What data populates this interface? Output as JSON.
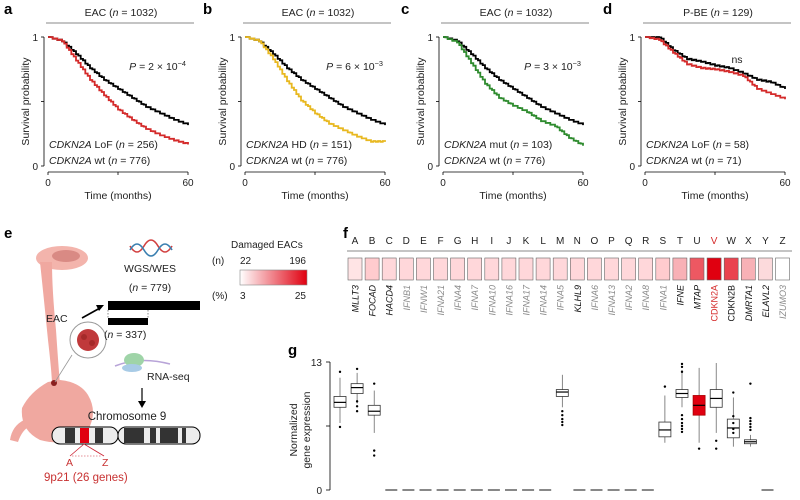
{
  "panel_letters": {
    "a": "a",
    "b": "b",
    "c": "c",
    "d": "d",
    "e": "e",
    "f": "f",
    "g": "g"
  },
  "chart_data": [
    {
      "type": "line",
      "panel": "a",
      "title": [
        {
          "t": "EAC ("
        },
        {
          "t": "n",
          "i": 1
        },
        {
          "t": " = 1032)"
        }
      ],
      "ylabel": "Survival probability",
      "xlabel": "Time (months)",
      "xlim": [
        0,
        60
      ],
      "ylim": [
        0,
        1
      ],
      "xticks": [
        "0",
        "60"
      ],
      "yticks": [
        "0",
        "1"
      ],
      "pvalue": [
        {
          "t": "P",
          "i": 1
        },
        {
          "t": " = 2 × 10"
        },
        {
          "t": "−4",
          "sup": 1
        }
      ],
      "legend_placement": "bottom-left",
      "series": [
        {
          "legend": [
            {
              "t": "CDKN2A",
              "i": 1
            },
            {
              "t": " LoF ("
            },
            {
              "t": "n",
              "i": 1
            },
            {
              "t": " = 256)"
            }
          ],
          "color": "#d42a2a",
          "x": [
            0,
            6,
            12,
            18,
            24,
            30,
            36,
            42,
            48,
            54,
            60
          ],
          "y": [
            1,
            0.97,
            0.82,
            0.67,
            0.55,
            0.44,
            0.36,
            0.29,
            0.24,
            0.2,
            0.17
          ]
        },
        {
          "legend": [
            {
              "t": "CDKN2A",
              "i": 1
            },
            {
              "t": " wt ("
            },
            {
              "t": "n",
              "i": 1
            },
            {
              "t": " = 776)"
            }
          ],
          "color": "#000000",
          "x": [
            0,
            6,
            12,
            18,
            24,
            30,
            36,
            42,
            48,
            54,
            60
          ],
          "y": [
            1,
            0.97,
            0.87,
            0.76,
            0.67,
            0.6,
            0.53,
            0.46,
            0.41,
            0.36,
            0.32
          ]
        }
      ]
    },
    {
      "type": "line",
      "panel": "b",
      "title": [
        {
          "t": "EAC ("
        },
        {
          "t": "n",
          "i": 1
        },
        {
          "t": " = 1032)"
        }
      ],
      "ylabel": "Survival probability",
      "xlabel": "Time (months)",
      "xlim": [
        0,
        60
      ],
      "ylim": [
        0,
        1
      ],
      "xticks": [
        "0",
        "60"
      ],
      "yticks": [
        "0",
        "1"
      ],
      "pvalue": [
        {
          "t": "P",
          "i": 1
        },
        {
          "t": " = 6 × 10"
        },
        {
          "t": "−3",
          "sup": 1
        }
      ],
      "legend_placement": "bottom-left",
      "series": [
        {
          "legend": [
            {
              "t": "CDKN2A",
              "i": 1
            },
            {
              "t": " HD ("
            },
            {
              "t": "n",
              "i": 1
            },
            {
              "t": " = 151)"
            }
          ],
          "color": "#e8b820",
          "x": [
            0,
            6,
            12,
            18,
            24,
            30,
            36,
            42,
            48,
            54,
            60
          ],
          "y": [
            1,
            0.97,
            0.83,
            0.66,
            0.51,
            0.41,
            0.33,
            0.28,
            0.23,
            0.19,
            0.19
          ]
        },
        {
          "legend": [
            {
              "t": "CDKN2A",
              "i": 1
            },
            {
              "t": " wt  ("
            },
            {
              "t": "n",
              "i": 1
            },
            {
              "t": " = 776)"
            }
          ],
          "color": "#000000",
          "x": [
            0,
            6,
            12,
            18,
            24,
            30,
            36,
            42,
            48,
            54,
            60
          ],
          "y": [
            1,
            0.97,
            0.87,
            0.76,
            0.67,
            0.6,
            0.53,
            0.46,
            0.41,
            0.36,
            0.32
          ]
        }
      ]
    },
    {
      "type": "line",
      "panel": "c",
      "title": [
        {
          "t": "EAC ("
        },
        {
          "t": "n",
          "i": 1
        },
        {
          "t": " = 1032)"
        }
      ],
      "ylabel": "Survival probability",
      "xlabel": "Time (months)",
      "xlim": [
        0,
        60
      ],
      "ylim": [
        0,
        1
      ],
      "xticks": [
        "0",
        "60"
      ],
      "yticks": [
        "0",
        "1"
      ],
      "pvalue": [
        {
          "t": "P",
          "i": 1
        },
        {
          "t": " = 3 × 10"
        },
        {
          "t": "−3",
          "sup": 1
        }
      ],
      "legend_placement": "bottom-left",
      "series": [
        {
          "legend": [
            {
              "t": "CDKN2A",
              "i": 1
            },
            {
              "t": " mut ("
            },
            {
              "t": "n",
              "i": 1
            },
            {
              "t": " = 103)"
            }
          ],
          "color": "#2e8b2e",
          "x": [
            0,
            6,
            12,
            18,
            24,
            30,
            36,
            42,
            48,
            54,
            60
          ],
          "y": [
            1,
            0.96,
            0.8,
            0.64,
            0.53,
            0.47,
            0.42,
            0.35,
            0.31,
            0.22,
            0.16
          ]
        },
        {
          "legend": [
            {
              "t": "CDKN2A",
              "i": 1
            },
            {
              "t": " wt  ("
            },
            {
              "t": "n",
              "i": 1
            },
            {
              "t": " = 776)"
            }
          ],
          "color": "#000000",
          "x": [
            0,
            6,
            12,
            18,
            24,
            30,
            36,
            42,
            48,
            54,
            60
          ],
          "y": [
            1,
            0.97,
            0.87,
            0.76,
            0.67,
            0.6,
            0.53,
            0.46,
            0.41,
            0.36,
            0.32
          ]
        }
      ]
    },
    {
      "type": "line",
      "panel": "d",
      "title": [
        {
          "t": "P-BE ("
        },
        {
          "t": "n",
          "i": 1
        },
        {
          "t": " = 129)"
        }
      ],
      "ylabel": "Survival probability",
      "xlabel": "Time (months)",
      "xlim": [
        0,
        60
      ],
      "ylim": [
        0,
        1
      ],
      "xticks": [
        "0",
        "60"
      ],
      "yticks": [
        "0",
        "1"
      ],
      "pvalue": [
        {
          "t": "ns"
        }
      ],
      "legend_placement": "bottom-left",
      "series": [
        {
          "legend": [
            {
              "t": "CDKN2A",
              "i": 1
            },
            {
              "t": " LoF ("
            },
            {
              "t": "n",
              "i": 1
            },
            {
              "t": " = 58)"
            }
          ],
          "color": "#d42a2a",
          "x": [
            0,
            6,
            12,
            18,
            24,
            30,
            36,
            42,
            48,
            54,
            60
          ],
          "y": [
            1,
            0.98,
            0.88,
            0.79,
            0.76,
            0.75,
            0.73,
            0.7,
            0.6,
            0.56,
            0.52
          ]
        },
        {
          "legend": [
            {
              "t": "CDKN2A",
              "i": 1
            },
            {
              "t": " wt  ("
            },
            {
              "t": "n",
              "i": 1
            },
            {
              "t": " = 71)"
            }
          ],
          "color": "#000000",
          "x": [
            0,
            6,
            12,
            18,
            24,
            30,
            36,
            42,
            48,
            54,
            60
          ],
          "y": [
            1,
            1,
            0.9,
            0.83,
            0.81,
            0.78,
            0.76,
            0.72,
            0.67,
            0.65,
            0.6
          ]
        }
      ]
    },
    {
      "type": "heatmap",
      "panel": "f",
      "legend_title": "Damaged EACs",
      "legend_n_label": "(n)",
      "legend_n_range": [
        "22",
        "196"
      ],
      "legend_pct_label": "(%)",
      "legend_pct_range": [
        "3",
        "25"
      ],
      "colors": {
        "low": "#ffffff",
        "high": "#e00010"
      },
      "letters": [
        "A",
        "B",
        "C",
        "D",
        "E",
        "F",
        "G",
        "H",
        "I",
        "J",
        "K",
        "L",
        "M",
        "N",
        "O",
        "P",
        "Q",
        "R",
        "S",
        "T",
        "U",
        "V",
        "W",
        "X",
        "Y",
        "Z"
      ],
      "genes": [
        "MLLT3",
        "FOCAD",
        "HACD4",
        "IFNB1",
        "IFNW1",
        "IFNA21",
        "IFNA4",
        "IFNA7",
        "IFNA10",
        "IFNA16",
        "IFNA17",
        "IFNA14",
        "IFNA5",
        "KLHL9",
        "IFNA6",
        "IFNA13",
        "IFNA2",
        "IFNA8",
        "IFNA1",
        "IFNE",
        "MTAP",
        "CDKN2A",
        "CDKN2B",
        "DMRTA1",
        "ELAVL2",
        "IZUMO3"
      ],
      "gene_styles": [
        "black",
        "black",
        "black",
        "gray",
        "gray",
        "gray",
        "gray",
        "gray",
        "gray",
        "gray",
        "gray",
        "gray",
        "gray",
        "black",
        "gray",
        "gray",
        "gray",
        "gray",
        "gray",
        "black",
        "black",
        "red",
        "black",
        "black",
        "black",
        "gray"
      ],
      "values_pct": [
        4,
        6,
        5,
        5,
        5,
        5,
        5,
        5,
        5,
        5,
        5,
        5,
        5,
        5,
        5,
        5,
        5,
        5,
        6,
        8,
        16,
        25,
        18,
        8,
        5,
        3
      ]
    },
    {
      "type": "box",
      "panel": "g",
      "ylabel": [
        "Normalized",
        "gene expression"
      ],
      "ylim": [
        0,
        13
      ],
      "yticks": [
        "0",
        "13"
      ],
      "categories": [
        "A",
        "B",
        "C",
        "D",
        "E",
        "F",
        "G",
        "H",
        "I",
        "J",
        "K",
        "L",
        "M",
        "N",
        "O",
        "P",
        "Q",
        "R",
        "S",
        "T",
        "U",
        "V",
        "W",
        "X",
        "Y",
        "Z"
      ],
      "highlight": "V",
      "highlight_color": "#e00010",
      "boxes": [
        [
          6.8,
          8.4,
          8.9,
          9.5,
          11.4
        ],
        [
          8.8,
          9.8,
          10.4,
          10.8,
          11.9
        ],
        [
          5.8,
          7.6,
          8.0,
          8.6,
          10.1
        ],
        null,
        null,
        null,
        null,
        null,
        null,
        null,
        null,
        null,
        null,
        [
          8.4,
          9.5,
          9.95,
          10.2,
          11.7
        ],
        null,
        null,
        null,
        null,
        null,
        [
          4.8,
          5.4,
          6.1,
          6.9,
          9.6
        ],
        [
          8.4,
          9.4,
          9.8,
          10.2,
          12.2
        ],
        [
          4.8,
          7.6,
          8.6,
          9.6,
          12.4
        ],
        [
          5.8,
          8.4,
          9.3,
          10.2,
          12.9
        ],
        [
          4.4,
          5.3,
          6.3,
          7.2,
          9.4
        ],
        [
          4.4,
          4.7,
          4.9,
          5.1,
          5.6
        ],
        null
      ],
      "outliers": [
        [
          6.4,
          12.0
        ],
        [
          9.0,
          8.5,
          8.0,
          12.3
        ],
        [
          4.0,
          3.5,
          10.8
        ],
        [],
        [],
        [],
        [],
        [],
        [],
        [],
        [],
        [],
        [],
        [
          8.0,
          7.6,
          7.2,
          6.9,
          6.6
        ],
        [],
        [],
        [],
        [],
        [],
        [
          10.5
        ],
        [
          12.8,
          12.5,
          12.0,
          7.6,
          7.2,
          6.8,
          6.5,
          6.2,
          5.9
        ],
        [
          4.2
        ],
        [
          5.0,
          4.2
        ],
        [
          9.9,
          7.5,
          6.8,
          6.2,
          5.8
        ],
        [
          7.3,
          7.0,
          6.7,
          6.4,
          6.1,
          10.8
        ],
        []
      ]
    }
  ],
  "illustration": {
    "wgs_label": "WGS/WES",
    "n779": [
      {
        "t": "("
      },
      {
        "t": "n",
        "i": 1
      },
      {
        "t": " = 779)"
      }
    ],
    "n337": [
      {
        "t": "("
      },
      {
        "t": "n",
        "i": 1
      },
      {
        "t": " = 337)"
      }
    ],
    "eac_label": "EAC",
    "rnaseq_label": "RNA-seq",
    "chromosome_label": "Chromosome 9",
    "band_start": "A",
    "band_end": "Z",
    "locus_label": "9p21 (26 genes)",
    "colors": {
      "tissue": "#f0a8a0",
      "accent": "#e00010"
    }
  }
}
